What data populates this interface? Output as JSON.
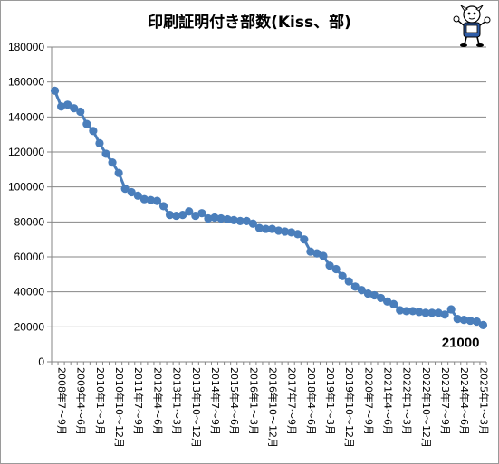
{
  "chart_data": {
    "type": "line",
    "title": "印刷証明付き部数(Kiss、部)",
    "xlabel": "",
    "ylabel": "",
    "ylim": [
      0,
      180000
    ],
    "y_ticks": [
      "0",
      "20000",
      "40000",
      "60000",
      "80000",
      "100000",
      "120000",
      "140000",
      "160000",
      "180000"
    ],
    "grid": true,
    "legend": "none",
    "x_tick_labels": [
      "2008年7～9月",
      "2009年4～6月",
      "2010年1～3月",
      "2010年10～12月",
      "2011年7～9月",
      "2012年4～6月",
      "2013年1～3月",
      "2013年10～12月",
      "2014年7～9月",
      "2015年4～6月",
      "2016年1～3月",
      "2016年10～12月",
      "2017年7～9月",
      "2018年4～6月",
      "2019年1～3月",
      "2019年10～12月",
      "2020年7～9月",
      "2021年4～6月",
      "2022年1～3月",
      "2022年10～12月",
      "2023年7～9月",
      "2024年4～6月",
      "2025年1～3月"
    ],
    "series": [
      {
        "color": "#4a7ebb",
        "values": [
          155000,
          146000,
          147000,
          145000,
          143000,
          136000,
          132000,
          125000,
          119000,
          114000,
          108000,
          99000,
          97000,
          95000,
          93000,
          92500,
          92000,
          89000,
          84000,
          83500,
          84000,
          86000,
          83500,
          85000,
          82000,
          82500,
          82000,
          81500,
          81000,
          80500,
          80500,
          79000,
          76500,
          76000,
          76000,
          75000,
          74500,
          74000,
          73000,
          70000,
          63000,
          62000,
          60500,
          55000,
          53000,
          49000,
          46000,
          43000,
          41000,
          39000,
          38000,
          36500,
          34500,
          33000,
          29500,
          29000,
          29000,
          28500,
          28000,
          28000,
          28000,
          27000,
          30000,
          24500,
          24000,
          23500,
          23000,
          21000
        ]
      }
    ],
    "data_labels": [
      {
        "index": 67,
        "text": "21000"
      }
    ]
  }
}
